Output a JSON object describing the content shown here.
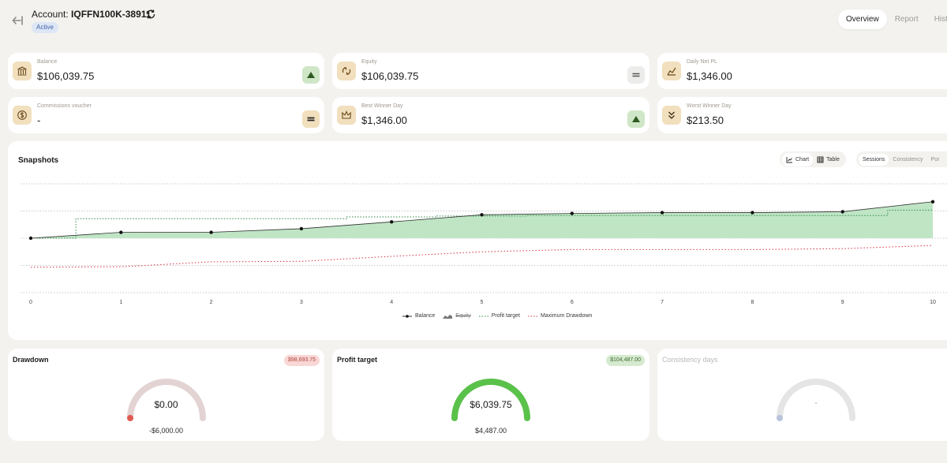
{
  "header": {
    "account_prefix": "Account:",
    "account_id": "IQFFN100K-38911",
    "status": "Active",
    "tabs": [
      "Overview",
      "Report",
      "Hist"
    ]
  },
  "stats": [
    {
      "label": "Balance",
      "value": "$106,039.75",
      "icon": "bank-icon",
      "trend": "up"
    },
    {
      "label": "Equity",
      "value": "$106,039.75",
      "icon": "sync-icon",
      "trend": "equal"
    },
    {
      "label": "Daily Net PL",
      "value": "$1,346.00",
      "icon": "chart-area-icon",
      "trend": "none"
    },
    {
      "label": "Commissions voucher",
      "value": "-",
      "icon": "dollar-icon",
      "trend": "equal-gold"
    },
    {
      "label": "Best Winner Day",
      "value": "$1,346.00",
      "icon": "crown-icon",
      "trend": "up"
    },
    {
      "label": "Worst Winner Day",
      "value": "$213.50",
      "icon": "chevrons-down-icon",
      "trend": "none"
    }
  ],
  "snapshots": {
    "title": "Snapshots",
    "view_options": [
      "Chart",
      "Table"
    ],
    "mode_options": [
      "Sessions",
      "Consistency",
      "Por"
    ]
  },
  "chart_data": {
    "type": "line",
    "x": [
      0,
      1,
      2,
      3,
      4,
      5,
      6,
      7,
      8,
      9,
      10
    ],
    "series": [
      {
        "name": "Balance",
        "values": [
          100000,
          100650,
          100650,
          101050,
          101800,
          102580,
          102730,
          102820,
          102820,
          102920,
          104020
        ]
      },
      {
        "name": "Equity",
        "values": [
          100000,
          100650,
          100650,
          101050,
          101800,
          102580,
          102730,
          102820,
          102820,
          102920,
          104020
        ]
      },
      {
        "name": "Profit target",
        "values": [
          100000,
          102150,
          102150,
          102150,
          102350,
          102450,
          102500,
          102500,
          102500,
          102500,
          103100
        ]
      },
      {
        "name": "Maximum Drawdown",
        "values": [
          96800,
          96850,
          97400,
          97450,
          98000,
          98500,
          98750,
          98750,
          98750,
          98850,
          99200
        ]
      }
    ],
    "ylim": [
      94000,
      106000
    ],
    "grid": true,
    "legend_position": "bottom-center"
  },
  "gauges": [
    {
      "title": "Drawdown",
      "pill": "$98,693.75",
      "value": "$0.00",
      "sub": "-$6,000.00",
      "fill": 0.0,
      "color": "#e05a52"
    },
    {
      "title": "Profit target",
      "pill": "$104,487.00",
      "value": "$6,039.75",
      "sub": "$4,487.00",
      "fill": 1.0,
      "color": "#5ac14a"
    },
    {
      "title": "Consistency days",
      "pill": "",
      "value": "-",
      "sub": "",
      "fill": 0.0,
      "color": "#b8c4dc"
    }
  ],
  "colors": {
    "balance_fill": "#bfe5c5",
    "balance_line": "#2f2f2f",
    "profit_target": "#2f8a4a",
    "drawdown": "#d94155"
  }
}
